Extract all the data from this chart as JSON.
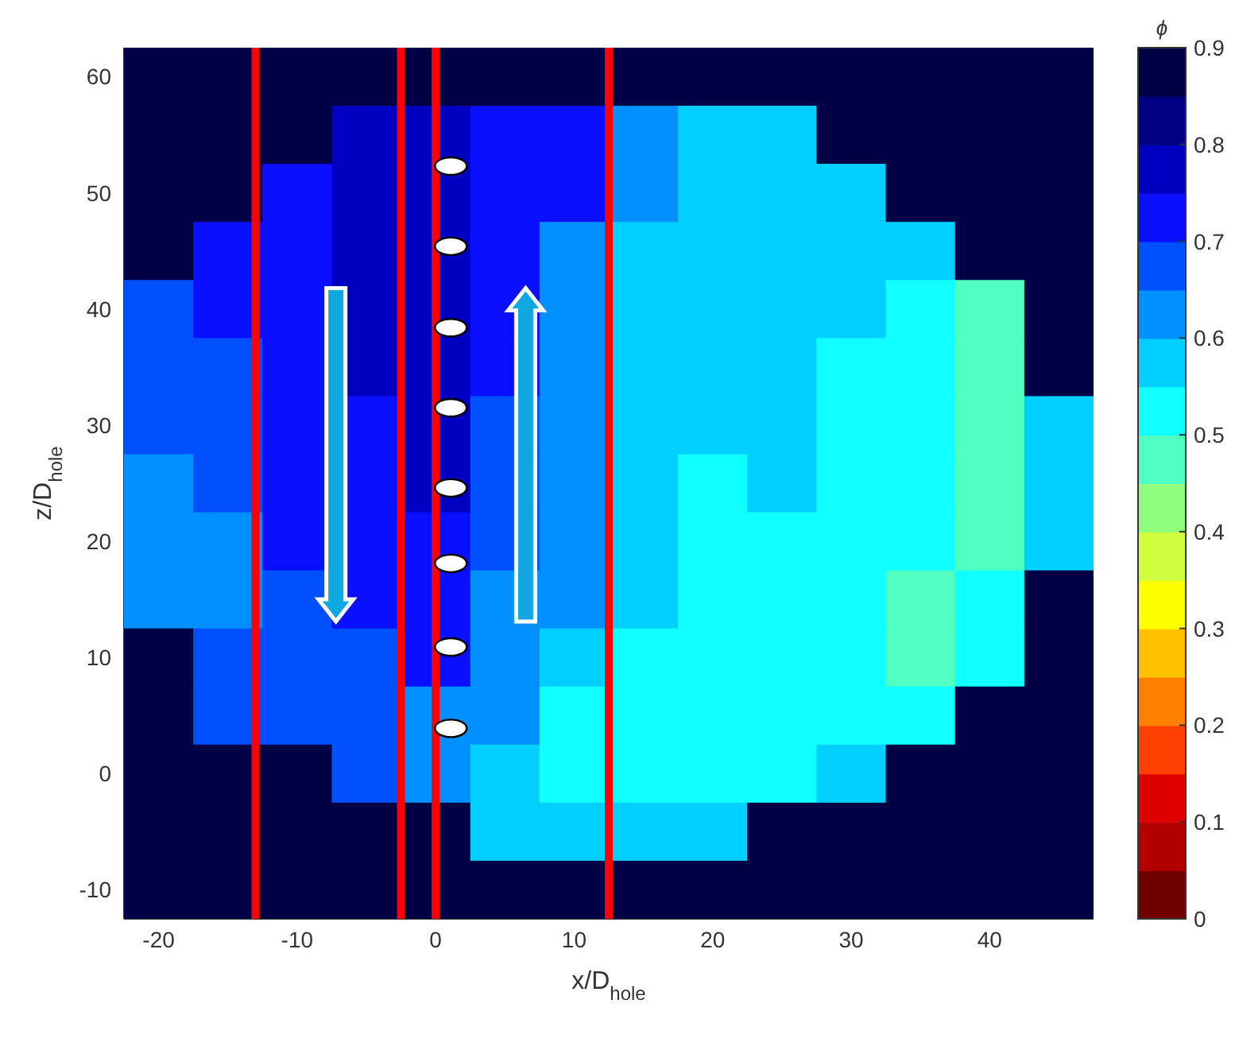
{
  "chart_data": {
    "type": "heatmap",
    "xlabel": "x/D$_{hole}$",
    "ylabel": "z/D$_{hole}$",
    "clabel": "ϕ",
    "categories": [
      "-20",
      null,
      "-10",
      null,
      "0",
      null,
      "10",
      null,
      "20",
      null,
      "30",
      null,
      "40",
      null
    ],
    "y_categories": [
      "60",
      null,
      "50",
      null,
      "40",
      null,
      "30",
      null,
      "20",
      null,
      "10",
      null,
      "0",
      null,
      "-10"
    ],
    "clim": [
      0,
      0.9
    ],
    "cticks": [
      0,
      0.1,
      0.2,
      0.3,
      0.4,
      0.5,
      0.6,
      0.7,
      0.8,
      0.9
    ],
    "colors": [
      "#700000",
      "#b00000",
      "#e00000",
      "#ff4000",
      "#ff8000",
      "#ffc000",
      "#ffff00",
      "#d0ff40",
      "#90ff80",
      "#50ffc0",
      "#10ffff",
      "#00d0ff",
      "#0090ff",
      "#0050ff",
      "#0a10ff",
      "#0000c0",
      "#000080",
      "#000046"
    ],
    "cells": [
      [
        0.875,
        0.875,
        0.875,
        0.875,
        0.875,
        0.875,
        0.875,
        0.875,
        0.875,
        0.875,
        0.875,
        0.875,
        0.875,
        0.875
      ],
      [
        0.875,
        0.875,
        0.875,
        0.775,
        0.775,
        0.725,
        0.725,
        0.625,
        0.575,
        0.575,
        0.875,
        0.875,
        0.875,
        0.875
      ],
      [
        0.875,
        0.875,
        0.725,
        0.775,
        0.775,
        0.725,
        0.725,
        0.625,
        0.575,
        0.575,
        0.575,
        0.875,
        0.875,
        0.875
      ],
      [
        0.875,
        0.725,
        0.725,
        0.775,
        0.775,
        0.725,
        0.625,
        0.575,
        0.575,
        0.575,
        0.575,
        0.575,
        0.875,
        0.875
      ],
      [
        0.675,
        0.725,
        0.725,
        0.775,
        0.775,
        0.725,
        0.625,
        0.575,
        0.575,
        0.575,
        0.575,
        0.525,
        0.475,
        0.875
      ],
      [
        0.675,
        0.675,
        0.725,
        0.775,
        0.775,
        0.725,
        0.625,
        0.575,
        0.575,
        0.575,
        0.525,
        0.525,
        0.475,
        0.875
      ],
      [
        0.675,
        0.675,
        0.725,
        0.725,
        0.775,
        0.675,
        0.625,
        0.575,
        0.575,
        0.575,
        0.525,
        0.525,
        0.475,
        0.575
      ],
      [
        0.625,
        0.675,
        0.725,
        0.725,
        0.775,
        0.675,
        0.625,
        0.575,
        0.525,
        0.575,
        0.525,
        0.525,
        0.475,
        0.575
      ],
      [
        0.625,
        0.625,
        0.725,
        0.725,
        0.725,
        0.675,
        0.625,
        0.575,
        0.525,
        0.525,
        0.525,
        0.525,
        0.475,
        0.575
      ],
      [
        0.625,
        0.625,
        0.675,
        0.725,
        0.725,
        0.625,
        0.625,
        0.575,
        0.525,
        0.525,
        0.525,
        0.475,
        0.525,
        0.875
      ],
      [
        0.875,
        0.675,
        0.675,
        0.675,
        0.725,
        0.625,
        0.575,
        0.525,
        0.525,
        0.525,
        0.525,
        0.475,
        0.525,
        0.875
      ],
      [
        0.875,
        0.675,
        0.675,
        0.675,
        0.625,
        0.625,
        0.525,
        0.525,
        0.525,
        0.525,
        0.525,
        0.525,
        0.875,
        0.875
      ],
      [
        0.875,
        0.875,
        0.875,
        0.675,
        0.625,
        0.575,
        0.525,
        0.525,
        0.525,
        0.525,
        0.575,
        0.875,
        0.875,
        0.875
      ],
      [
        0.875,
        0.875,
        0.875,
        0.875,
        0.875,
        0.575,
        0.575,
        0.575,
        0.575,
        0.875,
        0.875,
        0.875,
        0.875,
        0.875
      ],
      [
        0.875,
        0.875,
        0.875,
        0.875,
        0.875,
        0.875,
        0.875,
        0.875,
        0.875,
        0.875,
        0.875,
        0.875,
        0.875,
        0.875
      ]
    ],
    "ref_lines": [
      {
        "axis": "x",
        "value": "0",
        "color": "#ff0000"
      }
    ]
  }
}
